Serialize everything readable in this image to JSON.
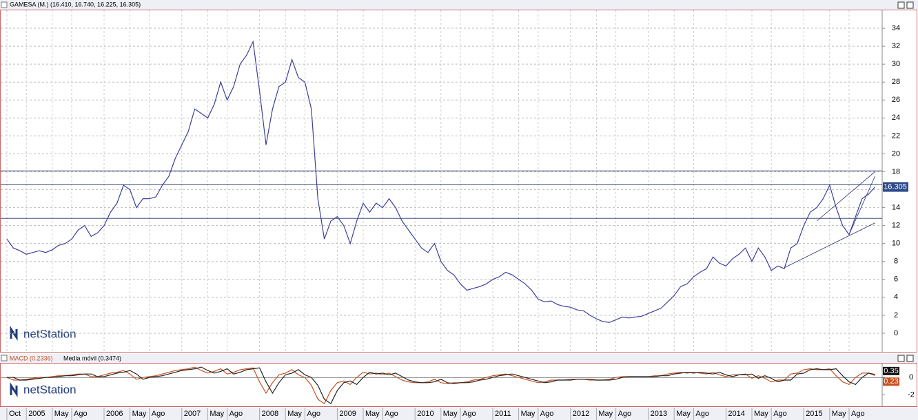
{
  "chart_data": [
    {
      "type": "line",
      "title": "GAMESA (M.) (16.410, 16.740, 16.225, 16.305)",
      "logo": "netStation",
      "x": [
        "2004-10",
        "2004-11",
        "2004-12",
        "2005-01",
        "2005-02",
        "2005-03",
        "2005-04",
        "2005-05",
        "2005-06",
        "2005-07",
        "2005-08",
        "2005-09",
        "2005-10",
        "2005-11",
        "2005-12",
        "2006-01",
        "2006-02",
        "2006-03",
        "2006-04",
        "2006-05",
        "2006-06",
        "2006-07",
        "2006-08",
        "2006-09",
        "2006-10",
        "2006-11",
        "2006-12",
        "2007-01",
        "2007-02",
        "2007-03",
        "2007-04",
        "2007-05",
        "2007-06",
        "2007-07",
        "2007-08",
        "2007-09",
        "2007-10",
        "2007-11",
        "2007-12",
        "2008-01",
        "2008-02",
        "2008-03",
        "2008-04",
        "2008-05",
        "2008-06",
        "2008-07",
        "2008-08",
        "2008-09",
        "2008-10",
        "2008-11",
        "2008-12",
        "2009-01",
        "2009-02",
        "2009-03",
        "2009-04",
        "2009-05",
        "2009-06",
        "2009-07",
        "2009-08",
        "2009-09",
        "2009-10",
        "2009-11",
        "2009-12",
        "2010-01",
        "2010-02",
        "2010-03",
        "2010-04",
        "2010-05",
        "2010-06",
        "2010-07",
        "2010-08",
        "2010-09",
        "2010-10",
        "2010-11",
        "2010-12",
        "2011-01",
        "2011-02",
        "2011-03",
        "2011-04",
        "2011-05",
        "2011-06",
        "2011-07",
        "2011-08",
        "2011-09",
        "2011-10",
        "2011-11",
        "2011-12",
        "2012-01",
        "2012-02",
        "2012-03",
        "2012-04",
        "2012-05",
        "2012-06",
        "2012-07",
        "2012-08",
        "2012-09",
        "2012-10",
        "2012-11",
        "2012-12",
        "2013-01",
        "2013-02",
        "2013-03",
        "2013-04",
        "2013-05",
        "2013-06",
        "2013-07",
        "2013-08",
        "2013-09",
        "2013-10",
        "2013-11",
        "2013-12",
        "2014-01",
        "2014-02",
        "2014-03",
        "2014-04",
        "2014-05",
        "2014-06",
        "2014-07",
        "2014-08",
        "2014-09",
        "2014-10",
        "2014-11",
        "2014-12",
        "2015-01",
        "2015-02",
        "2015-03",
        "2015-04",
        "2015-05",
        "2015-06",
        "2015-07",
        "2015-08",
        "2015-09",
        "2015-10",
        "2015-11",
        "2015-12"
      ],
      "series": [
        {
          "color": "#3a3f9a",
          "values": [
            10.5,
            9.5,
            9.2,
            8.8,
            9.0,
            9.2,
            9.0,
            9.3,
            9.8,
            10.0,
            10.5,
            11.5,
            12.0,
            10.8,
            11.2,
            12.0,
            13.5,
            14.5,
            16.5,
            16.0,
            14.0,
            15.0,
            15.0,
            15.2,
            16.5,
            17.5,
            19.5,
            21.0,
            22.5,
            25.0,
            24.5,
            24.0,
            25.5,
            28.0,
            26.0,
            27.5,
            30.0,
            31.0,
            32.5,
            27.0,
            21.0,
            25.0,
            27.5,
            28.0,
            30.5,
            28.5,
            28.0,
            25.0,
            15.0,
            10.5,
            12.5,
            13.0,
            12.0,
            10.0,
            12.5,
            14.5,
            13.5,
            14.5,
            14.0,
            15.0,
            14.0,
            12.5,
            11.5,
            10.5,
            9.5,
            9.0,
            10.0,
            8.0,
            7.0,
            6.5,
            5.5,
            4.8,
            5.0,
            5.2,
            5.5,
            6.0,
            6.3,
            6.8,
            6.5,
            6.0,
            5.5,
            4.8,
            3.8,
            3.5,
            3.6,
            3.2,
            3.0,
            2.9,
            2.6,
            2.5,
            2.0,
            1.6,
            1.3,
            1.2,
            1.5,
            1.8,
            1.7,
            1.8,
            1.9,
            2.2,
            2.5,
            2.8,
            3.5,
            4.2,
            5.2,
            5.5,
            6.3,
            6.8,
            7.2,
            8.5,
            7.8,
            7.5,
            8.3,
            8.8,
            9.5,
            8.0,
            9.5,
            8.5,
            7.0,
            7.5,
            7.2,
            9.5,
            10.0,
            12.0,
            13.5,
            14.0,
            15.0,
            16.5,
            14.0,
            12.0,
            11.0,
            13.0,
            15.0,
            15.5,
            16.3
          ]
        }
      ],
      "last_price": 16.305,
      "hlines": [
        18.1,
        16.6,
        12.8
      ],
      "trendlines": [
        {
          "x": [
            "2014-10",
            "2015-12"
          ],
          "y": [
            7.3,
            12.3
          ]
        },
        {
          "x": [
            "2015-08",
            "2015-12"
          ],
          "y": [
            11.0,
            17.5
          ]
        },
        {
          "x": [
            "2015-03",
            "2015-12"
          ],
          "y": [
            12.5,
            18.0
          ]
        }
      ],
      "ylim": [
        -2,
        36
      ],
      "yticks": [
        0,
        2,
        4,
        6,
        8,
        10,
        12,
        14,
        16,
        18,
        20,
        22,
        24,
        26,
        28,
        30,
        32,
        34
      ],
      "grid": true,
      "xticks": [
        {
          "value": "2004-10",
          "label": "Oct"
        },
        {
          "value": "2005-01",
          "label": "2005"
        },
        {
          "value": "2005-05",
          "label": "May"
        },
        {
          "value": "2005-08",
          "label": "Ago"
        },
        {
          "value": "2006-01",
          "label": "2006"
        },
        {
          "value": "2006-05",
          "label": "May"
        },
        {
          "value": "2006-08",
          "label": "Ago"
        },
        {
          "value": "2007-01",
          "label": "2007"
        },
        {
          "value": "2007-05",
          "label": "May"
        },
        {
          "value": "2007-08",
          "label": "Ago"
        },
        {
          "value": "2008-01",
          "label": "2008"
        },
        {
          "value": "2008-05",
          "label": "May"
        },
        {
          "value": "2008-08",
          "label": "Ago"
        },
        {
          "value": "2009-01",
          "label": "2009"
        },
        {
          "value": "2009-05",
          "label": "May"
        },
        {
          "value": "2009-08",
          "label": "Ago"
        },
        {
          "value": "2010-01",
          "label": "2010"
        },
        {
          "value": "2010-05",
          "label": "May"
        },
        {
          "value": "2010-08",
          "label": "Ago"
        },
        {
          "value": "2011-01",
          "label": "2011"
        },
        {
          "value": "2011-05",
          "label": "May"
        },
        {
          "value": "2011-08",
          "label": "Ago"
        },
        {
          "value": "2012-01",
          "label": "2012"
        },
        {
          "value": "2012-05",
          "label": "May"
        },
        {
          "value": "2012-08",
          "label": "Ago"
        },
        {
          "value": "2013-01",
          "label": "2013"
        },
        {
          "value": "2013-05",
          "label": "May"
        },
        {
          "value": "2013-08",
          "label": "Ago"
        },
        {
          "value": "2014-01",
          "label": "2014"
        },
        {
          "value": "2014-05",
          "label": "May"
        },
        {
          "value": "2014-08",
          "label": "Ago"
        },
        {
          "value": "2015-01",
          "label": "2015"
        },
        {
          "value": "2015-05",
          "label": "May"
        },
        {
          "value": "2015-08",
          "label": "Ago"
        }
      ]
    },
    {
      "type": "line",
      "logo": "netStation",
      "series": [
        {
          "name": "MACD (0.2336)",
          "color": "#c8501e",
          "last_label": "0.23",
          "values": [
            0,
            -0.3,
            -0.3,
            -0.2,
            -0.1,
            0,
            0,
            0.1,
            0.2,
            0.2,
            0.3,
            0.4,
            0.4,
            0.1,
            0.1,
            0.3,
            0.5,
            0.6,
            0.8,
            0.4,
            -0.2,
            0,
            0.1,
            0.2,
            0.4,
            0.6,
            0.8,
            0.9,
            1.0,
            1.2,
            0.8,
            0.5,
            0.7,
            1.0,
            0.4,
            0.6,
            0.9,
            1.0,
            1.1,
            -0.5,
            -1.8,
            -0.6,
            0.3,
            0.5,
            0.9,
            0.3,
            0,
            -0.9,
            -2.5,
            -3.0,
            -1.5,
            -0.6,
            -0.4,
            -0.8,
            0,
            0.6,
            0.4,
            0.5,
            0.3,
            0.5,
            0.1,
            -0.3,
            -0.5,
            -0.6,
            -0.6,
            -0.5,
            -0.2,
            -0.6,
            -0.7,
            -0.6,
            -0.6,
            -0.5,
            -0.3,
            -0.2,
            0,
            0.2,
            0.3,
            0.4,
            0.2,
            0,
            -0.2,
            -0.4,
            -0.6,
            -0.5,
            -0.3,
            -0.3,
            -0.3,
            -0.2,
            -0.2,
            -0.2,
            -0.3,
            -0.3,
            -0.3,
            -0.2,
            0,
            0.1,
            0.1,
            0.1,
            0.1,
            0.1,
            0.2,
            0.2,
            0.4,
            0.5,
            0.6,
            0.5,
            0.6,
            0.5,
            0.4,
            0.6,
            0.3,
            0.1,
            0.3,
            0.3,
            0.4,
            -0.1,
            0.2,
            -0.1,
            -0.5,
            -0.3,
            -0.3,
            0.4,
            0.5,
            0.9,
            1.0,
            0.9,
            0.9,
            1.0,
            0.2,
            -0.5,
            -0.8,
            0,
            0.5,
            0.5,
            0.2336
          ]
        },
        {
          "name": "Media móvil (0.3474)",
          "color": "#222222",
          "last_label": "0.35",
          "values": [
            0,
            0,
            -0.3,
            -0.3,
            -0.2,
            -0.1,
            0,
            0,
            0.1,
            0.2,
            0.2,
            0.3,
            0.4,
            0.4,
            0.1,
            0.1,
            0.3,
            0.5,
            0.6,
            0.8,
            0.4,
            -0.2,
            0,
            0.1,
            0.2,
            0.4,
            0.6,
            0.8,
            0.9,
            1.0,
            1.2,
            0.8,
            0.5,
            0.7,
            1.0,
            0.4,
            0.6,
            0.9,
            1.0,
            1.1,
            -0.5,
            -1.8,
            -0.6,
            0.3,
            0.5,
            0.9,
            0.3,
            0,
            -0.9,
            -2.5,
            -3.0,
            -1.5,
            -0.6,
            -0.4,
            -0.8,
            0,
            0.6,
            0.4,
            0.5,
            0.3,
            0.5,
            0.1,
            -0.3,
            -0.5,
            -0.6,
            -0.6,
            -0.5,
            -0.2,
            -0.6,
            -0.7,
            -0.6,
            -0.6,
            -0.5,
            -0.3,
            -0.2,
            0,
            0.2,
            0.3,
            0.4,
            0.2,
            0,
            -0.2,
            -0.4,
            -0.6,
            -0.5,
            -0.3,
            -0.3,
            -0.3,
            -0.2,
            -0.2,
            -0.2,
            -0.3,
            -0.3,
            -0.3,
            -0.2,
            0,
            0.1,
            0.1,
            0.1,
            0.1,
            0.1,
            0.2,
            0.2,
            0.4,
            0.5,
            0.6,
            0.5,
            0.6,
            0.5,
            0.4,
            0.6,
            0.3,
            0.1,
            0.3,
            0.3,
            0.4,
            -0.1,
            0.2,
            -0.1,
            -0.5,
            -0.3,
            -0.3,
            0.4,
            0.5,
            0.9,
            1.0,
            0.9,
            0.9,
            1.0,
            0.2,
            -0.5,
            -0.8,
            0,
            0.5,
            0.3474
          ]
        }
      ],
      "ylim": [
        -3.3,
        1.6
      ],
      "yticks": [
        0,
        -2
      ]
    }
  ]
}
